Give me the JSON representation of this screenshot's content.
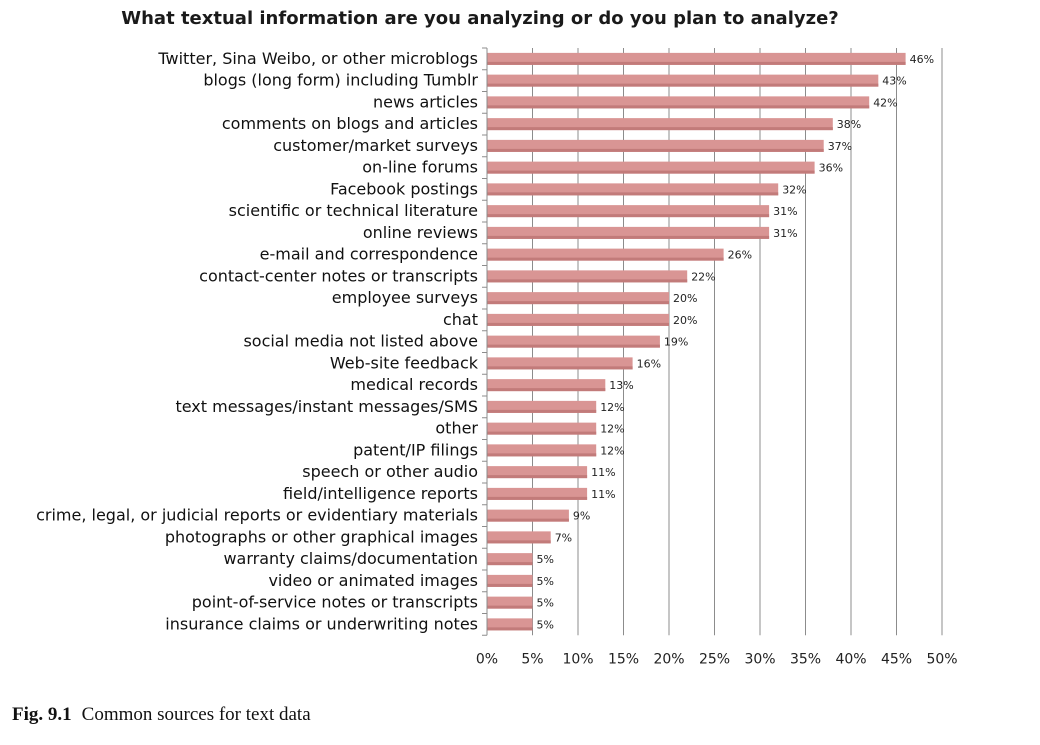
{
  "figure": {
    "caption_label": "Fig. 9.1",
    "caption_text": "Common sources for text data"
  },
  "chart_data": {
    "type": "bar",
    "orientation": "horizontal",
    "title": "What textual information are you analyzing or do you plan to analyze?",
    "xlabel": "",
    "ylabel": "",
    "xlim": [
      0,
      50
    ],
    "x_ticks": [
      "0%",
      "5%",
      "10%",
      "15%",
      "20%",
      "25%",
      "30%",
      "35%",
      "40%",
      "45%",
      "50%"
    ],
    "grid": "vertical",
    "bar_color": "#d99594",
    "categories": [
      "Twitter, Sina Weibo, or other microblogs",
      "blogs (long form) including Tumblr",
      "news articles",
      "comments on blogs and articles",
      "customer/market surveys",
      "on-line forums",
      "Facebook postings",
      "scientific or technical literature",
      "online reviews",
      "e-mail and correspondence",
      "contact-center notes or transcripts",
      "employee surveys",
      "chat",
      "social media not listed above",
      "Web-site feedback",
      "medical records",
      "text messages/instant messages/SMS",
      "other",
      "patent/IP filings",
      "speech or other audio",
      "field/intelligence reports",
      "crime, legal, or judicial reports or evidentiary materials",
      "photographs or other graphical images",
      "warranty claims/documentation",
      "video or animated images",
      "point-of-service notes or transcripts",
      "insurance claims or underwriting notes"
    ],
    "values": [
      46,
      43,
      42,
      38,
      37,
      36,
      32,
      31,
      31,
      26,
      22,
      20,
      20,
      19,
      16,
      13,
      12,
      12,
      12,
      11,
      11,
      9,
      7,
      5,
      5,
      5,
      5
    ],
    "value_labels": [
      "46%",
      "43%",
      "42%",
      "38%",
      "37%",
      "36%",
      "32%",
      "31%",
      "31%",
      "26%",
      "22%",
      "20%",
      "20%",
      "19%",
      "16%",
      "13%",
      "12%",
      "12%",
      "12%",
      "11%",
      "11%",
      "9%",
      "7%",
      "5%",
      "5%",
      "5%",
      "5%"
    ]
  }
}
